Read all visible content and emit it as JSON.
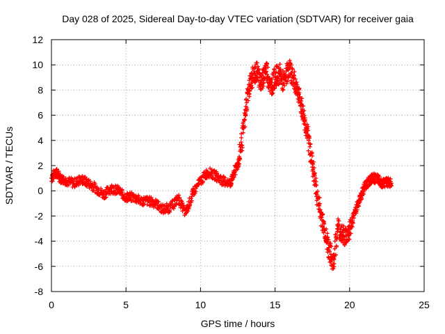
{
  "chart_data": {
    "type": "scatter",
    "title": "Day 028 of 2025, Sidereal Day-to-day VTEC variation (SDTVAR) for receiver gaia",
    "xlabel": "GPS time / hours",
    "ylabel": "SDTVAR / TECUs",
    "xlim": [
      0,
      25
    ],
    "ylim": [
      -8,
      12
    ],
    "xticks": [
      0,
      5,
      10,
      15,
      20,
      25
    ],
    "yticks": [
      -8,
      -6,
      -4,
      -2,
      0,
      2,
      4,
      6,
      8,
      10,
      12
    ],
    "grid": true,
    "marker": "+",
    "color": "#ff0000",
    "series": [
      {
        "name": "SDTVAR",
        "x": [
          0.0,
          0.3,
          0.6,
          1.0,
          1.5,
          2.0,
          2.5,
          3.0,
          3.5,
          4.0,
          4.5,
          5.0,
          5.5,
          6.0,
          6.5,
          7.0,
          7.5,
          8.0,
          8.5,
          9.0,
          9.5,
          10.0,
          10.5,
          11.0,
          11.5,
          12.0,
          12.3,
          12.6,
          12.9,
          13.2,
          13.5,
          13.8,
          14.1,
          14.4,
          14.7,
          15.0,
          15.3,
          15.6,
          15.9,
          16.2,
          16.5,
          16.8,
          17.1,
          17.4,
          17.7,
          18.0,
          18.3,
          18.6,
          18.9,
          19.2,
          19.5,
          19.8,
          20.1,
          20.4,
          20.7,
          21.0,
          21.3,
          21.6,
          21.9,
          22.2,
          22.5,
          22.8
        ],
        "y": [
          1.0,
          1.5,
          1.0,
          0.8,
          0.6,
          0.9,
          0.6,
          0.2,
          -0.3,
          0.2,
          0.0,
          -0.5,
          -0.5,
          -0.8,
          -0.8,
          -1.0,
          -1.5,
          -1.3,
          -0.6,
          -1.8,
          -0.2,
          0.8,
          1.5,
          1.2,
          0.8,
          0.6,
          1.5,
          2.5,
          5.0,
          8.0,
          9.0,
          9.5,
          8.5,
          9.8,
          8.2,
          9.0,
          9.3,
          8.5,
          9.8,
          9.0,
          8.0,
          6.5,
          5.0,
          3.0,
          0.5,
          -1.5,
          -3.0,
          -4.5,
          -5.8,
          -2.8,
          -3.5,
          -3.6,
          -2.8,
          -1.5,
          -0.6,
          0.3,
          0.8,
          1.0,
          0.9,
          0.6,
          0.7,
          0.6
        ]
      }
    ]
  }
}
